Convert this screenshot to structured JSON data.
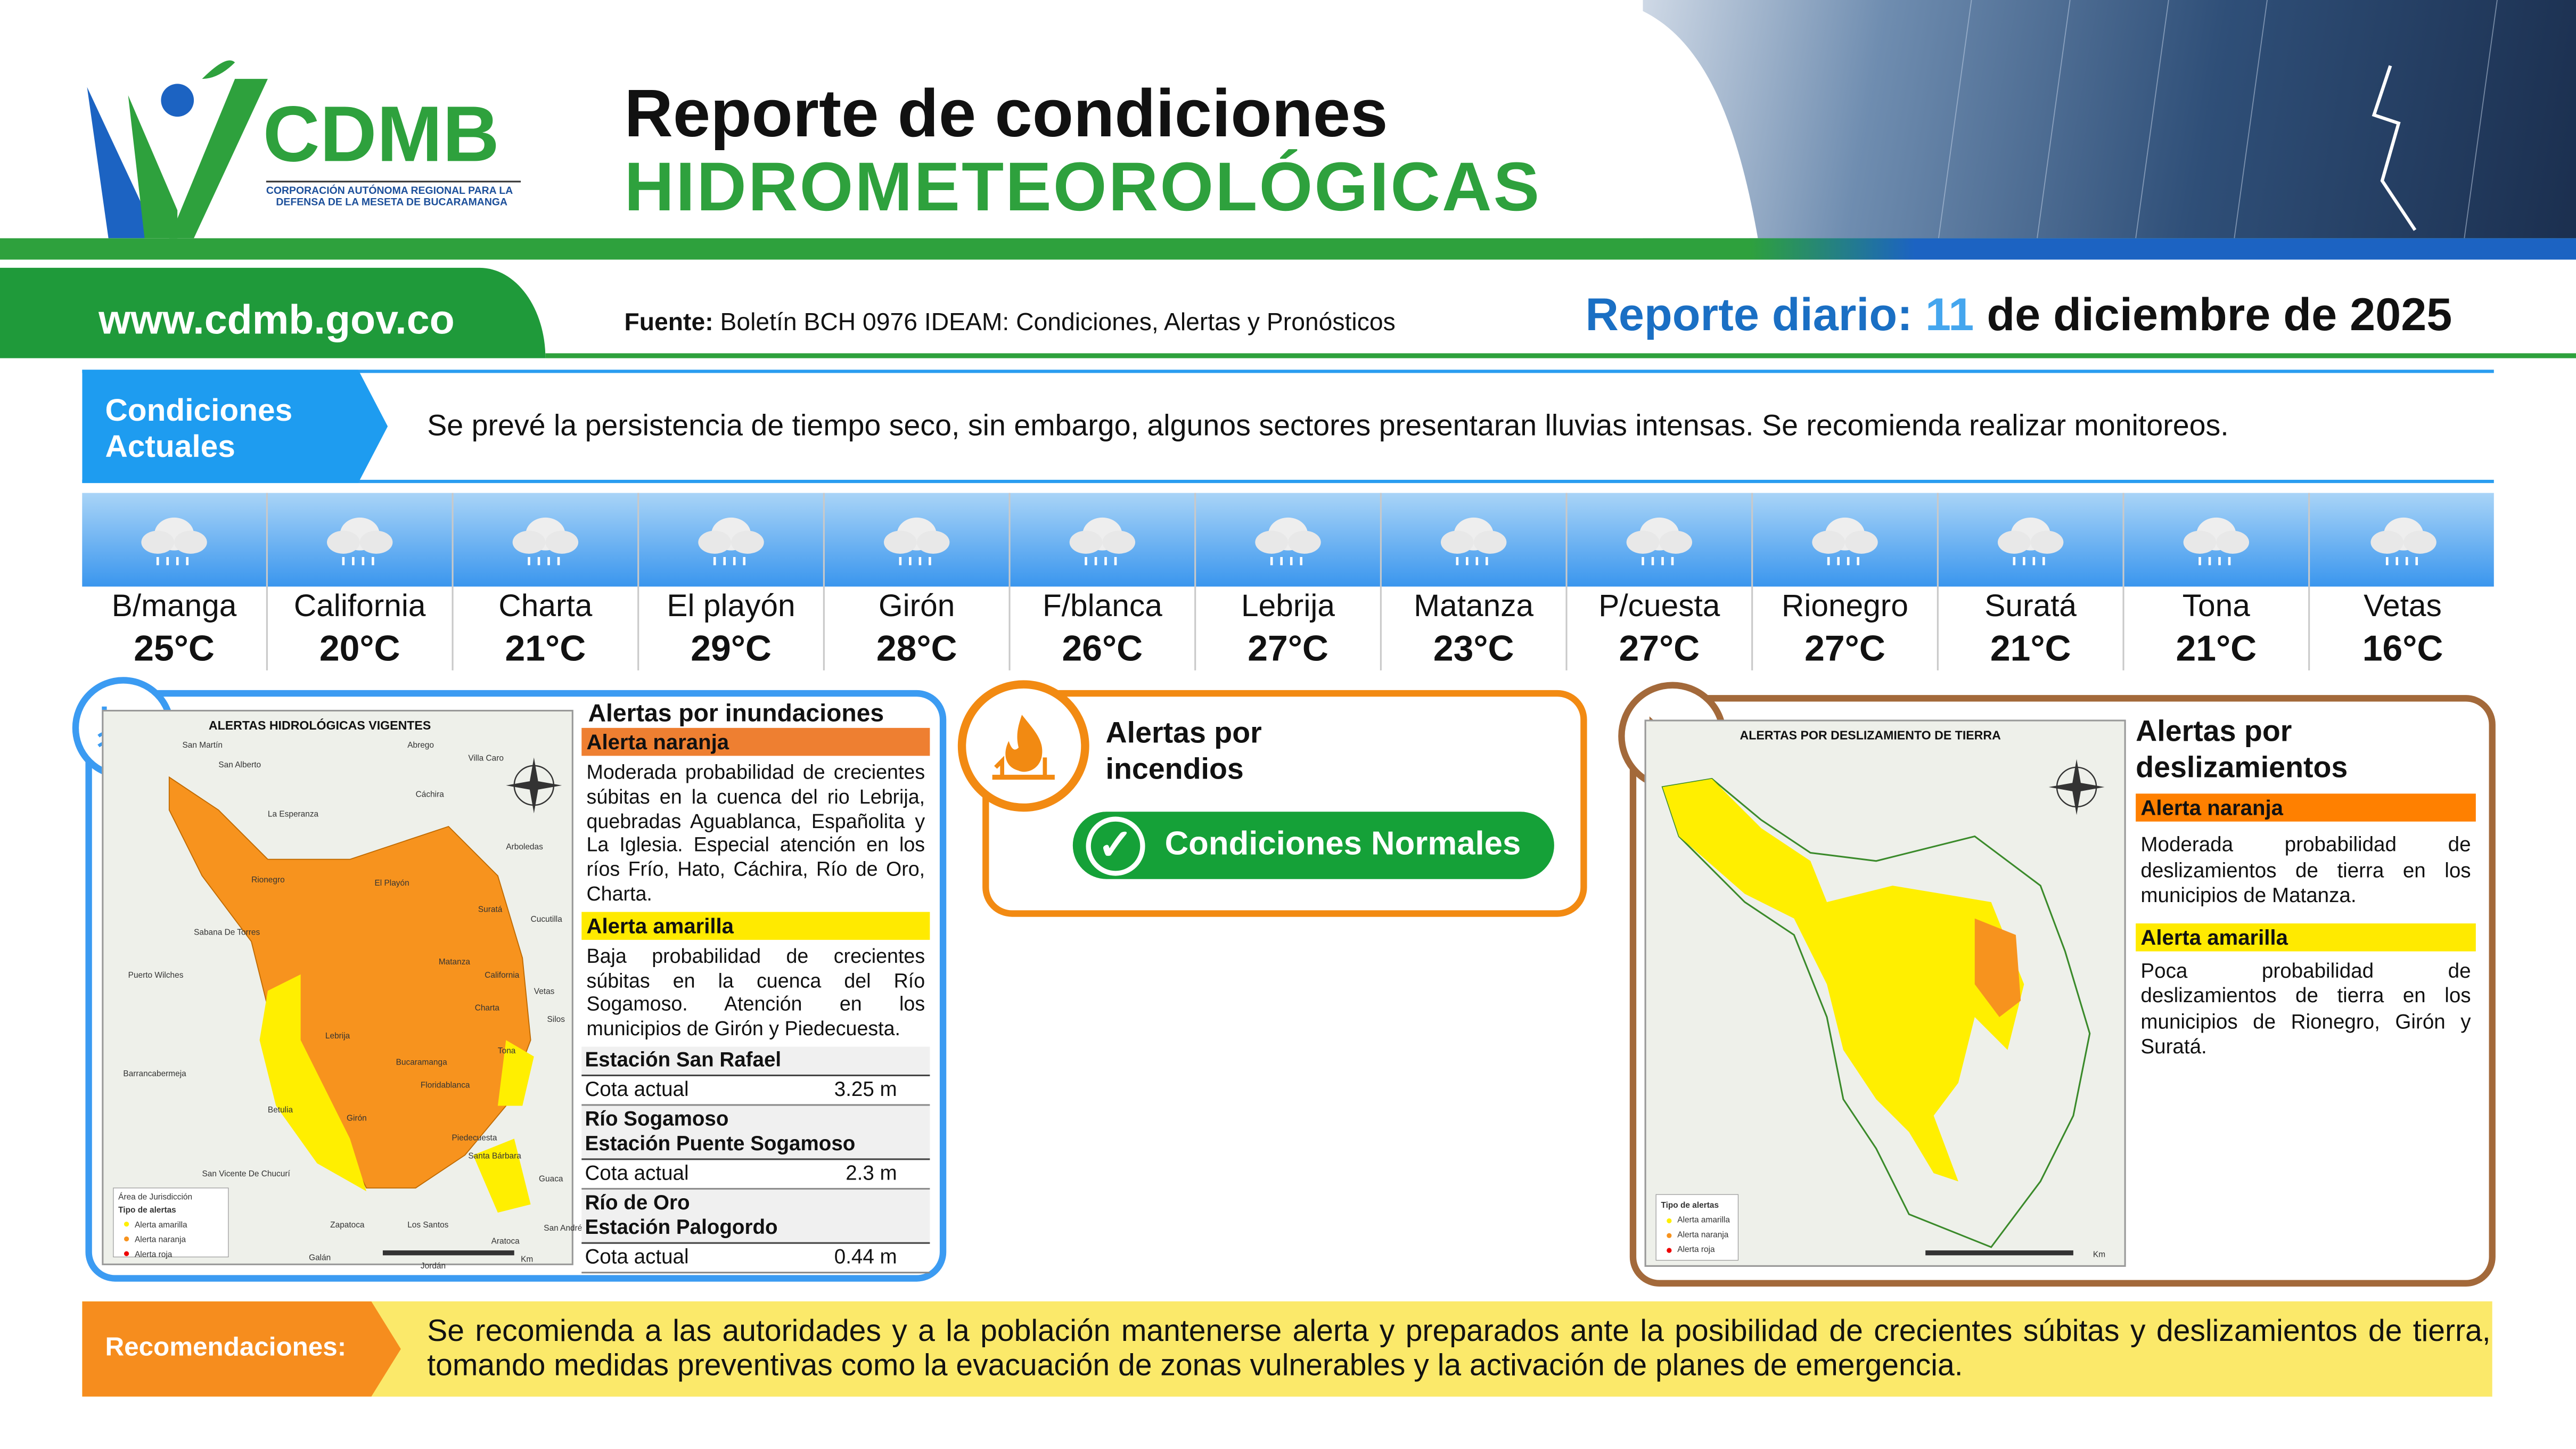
{
  "header": {
    "logo_text": "CDMB",
    "logo_subtitle_1": "CORPORACIÓN AUTÓNOMA REGIONAL PARA LA",
    "logo_subtitle_2": "DEFENSA DE LA MESETA DE BUCARAMANGA",
    "title_line1": "Reporte de condiciones",
    "title_line2": "HIDROMETEOROLÓGICAS"
  },
  "subheader": {
    "url": "www.cdmb.gov.co",
    "source_label": "Fuente:",
    "source_text": " Boletín BCH 0976 IDEAM: Condiciones, Alertas y Pronósticos",
    "report_prefix": "Reporte diario: ",
    "report_day": "11",
    "report_rest": " de diciembre de 2025"
  },
  "conditions": {
    "label_line1": "Condiciones",
    "label_line2": "Actuales",
    "text": "Se prevé la persistencia de tiempo seco, sin embargo, algunos sectores presentaran lluvias intensas. Se recomienda realizar monitoreos."
  },
  "weather": [
    {
      "name": "B/manga",
      "temp": "25°C",
      "icon": "rain-cloud-icon"
    },
    {
      "name": "California",
      "temp": "20°C",
      "icon": "rain-cloud-icon"
    },
    {
      "name": "Charta",
      "temp": "21°C",
      "icon": "rain-cloud-icon"
    },
    {
      "name": "El playón",
      "temp": "29°C",
      "icon": "rain-cloud-icon"
    },
    {
      "name": "Girón",
      "temp": "28°C",
      "icon": "rain-cloud-icon"
    },
    {
      "name": "F/blanca",
      "temp": "26°C",
      "icon": "rain-cloud-icon"
    },
    {
      "name": "Lebrija",
      "temp": "27°C",
      "icon": "rain-cloud-icon"
    },
    {
      "name": "Matanza",
      "temp": "23°C",
      "icon": "rain-cloud-icon"
    },
    {
      "name": "P/cuesta",
      "temp": "27°C",
      "icon": "rain-cloud-icon"
    },
    {
      "name": "Rionegro",
      "temp": "27°C",
      "icon": "rain-cloud-icon"
    },
    {
      "name": "Suratá",
      "temp": "21°C",
      "icon": "rain-cloud-icon"
    },
    {
      "name": "Tona",
      "temp": "21°C",
      "icon": "rain-cloud-icon"
    },
    {
      "name": "Vetas",
      "temp": "16°C",
      "icon": "rain-cloud-icon"
    }
  ],
  "floods": {
    "map_title": "ALERTAS HIDROLÓGICAS VIGENTES",
    "map_labels": [
      "San Martín",
      "San Alberto",
      "Abrego",
      "Cáchira",
      "La Esperanza",
      "Rionegro",
      "El Playón",
      "Suratá",
      "Matanza",
      "California",
      "Vetas",
      "Charta",
      "Tona",
      "Lebrija",
      "Bucaramanga",
      "Floridablanca",
      "Piedecuesta",
      "Girón",
      "Sabana De Torres",
      "Puerto Wilches",
      "Barrancabermeja",
      "Betulia",
      "Zapatoca",
      "Los Santos",
      "Arboledas",
      "Cucutilla",
      "Silos",
      "Guaca",
      "Santa Bárbara",
      "San Andrés",
      "San Vicente De Chucurí",
      "Galán",
      "Jordán",
      "Aratoca",
      "Villa Caro"
    ],
    "legend": {
      "area": "Área de Jurisdicción",
      "type": "Tipo de alertas",
      "yellow": "Alerta amarilla",
      "orange": "Alerta naranja",
      "red": "Alerta roja",
      "km": "Km"
    },
    "title": "Alertas por inundaciones",
    "orange_label": "Alerta naranja",
    "orange_text": "Moderada probabilidad de crecientes súbitas en la cuenca del rio Lebrija, quebradas Aguablanca, Españolita y La Iglesia. Especial atención en los ríos Frío, Hato, Cáchira, Río de Oro, Charta.",
    "yellow_label": "Alerta amarilla",
    "yellow_text": "Baja probabilidad de crecientes súbitas en la cuenca del Río Sogamoso. Atención en los municipios de Girón y Piedecuesta.",
    "stations": [
      {
        "name_lines": [
          "Estación San Rafael"
        ],
        "label": "Cota actual",
        "value": "3.25 m"
      },
      {
        "name_lines": [
          "Río Sogamoso",
          "Estación Puente Sogamoso"
        ],
        "label": "Cota actual",
        "value": "2.3 m"
      },
      {
        "name_lines": [
          "Río de Oro",
          "Estación Palogordo"
        ],
        "label": "Cota actual",
        "value": "0.44 m"
      }
    ]
  },
  "fires": {
    "title_line1": "Alertas por",
    "title_line2": "incendios",
    "status": "Condiciones Normales",
    "icon": "fire-icon"
  },
  "landslides": {
    "map_title": "ALERTAS POR DESLIZAMIENTO DE TIERRA",
    "legend": {
      "type": "Tipo de alertas",
      "yellow": "Alerta amarilla",
      "orange": "Alerta naranja",
      "red": "Alerta roja",
      "km": "Km"
    },
    "title_line1": "Alertas por",
    "title_line2": "deslizamientos",
    "orange_label": "Alerta naranja",
    "orange_text": "Moderada probabilidad de deslizamientos de tierra en los municipios de Matanza.",
    "yellow_label": "Alerta amarilla",
    "yellow_text": "Poca probabilidad de deslizamientos de tierra en los municipios de Rionegro, Girón y Suratá."
  },
  "recommendations": {
    "label": "Recomendaciones:",
    "text": "Se recomienda a las autoridades y a la población mantenerse alerta y preparados ante la posibilidad de crecientes súbitas y deslizamientos de tierra, tomando medidas preventivas como la evacuación de zonas vulnerables y la activación de planes de emergencia."
  },
  "colors": {
    "green": "#2ea13d",
    "blue": "#1e9cf0",
    "orange": "#f68d1e",
    "yellow": "#ffea00",
    "brown": "#a3693a"
  }
}
